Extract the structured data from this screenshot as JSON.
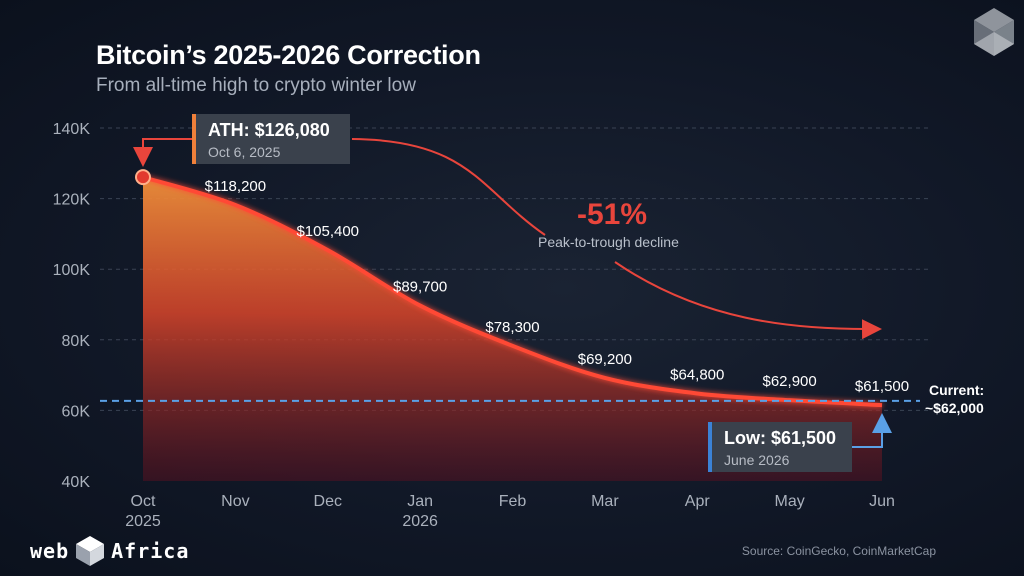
{
  "title": "Bitcoin’s 2025-2026 Correction",
  "subtitle": "From all-time high to crypto winter low",
  "colors": {
    "background": "#111827",
    "line": "#ff4a36",
    "area_top": "#f0903a",
    "area_bottom": "#c81e22",
    "current_line": "#5aa0e6",
    "ath_accent": "#f0803a",
    "low_accent": "#3b82d6",
    "decline": "#e8453c"
  },
  "chart_data": {
    "type": "area",
    "categories": [
      "Oct\n2025",
      "Nov",
      "Dec",
      "Jan\n2026",
      "Feb",
      "Mar",
      "Apr",
      "May",
      "Jun"
    ],
    "x_labels": [
      [
        "Oct",
        "2025"
      ],
      [
        "Nov"
      ],
      [
        "Dec"
      ],
      [
        "Jan",
        "2026"
      ],
      [
        "Feb"
      ],
      [
        "Mar"
      ],
      [
        "Apr"
      ],
      [
        "May"
      ],
      [
        "Jun"
      ]
    ],
    "values": [
      126080,
      118200,
      105400,
      89700,
      78300,
      69200,
      64800,
      62900,
      61500
    ],
    "data_labels": [
      "",
      "$118,200",
      "$105,400",
      "$89,700",
      "$78,300",
      "$69,200",
      "$64,800",
      "$62,900",
      "$61,500"
    ],
    "ylim": [
      40000,
      140000
    ],
    "yticks": [
      40000,
      60000,
      80000,
      100000,
      120000,
      140000
    ],
    "ytick_labels": [
      "40K",
      "60K",
      "80K",
      "100K",
      "120K",
      "140K"
    ],
    "current_value": 62700,
    "grid": true,
    "legend": "none"
  },
  "annotations": {
    "ath_title": "ATH: $126,080",
    "ath_date": "Oct 6, 2025",
    "low_title": "Low: $61,500",
    "low_date": "June 2026",
    "decline_pct": "-51%",
    "decline_label": "Peak-to-trough decline",
    "current_line1": "Current:",
    "current_line2": "~$62,000"
  },
  "source": "Source: CoinGecko, CoinMarketCap",
  "brand": {
    "left": "web",
    "right": "Africa"
  }
}
